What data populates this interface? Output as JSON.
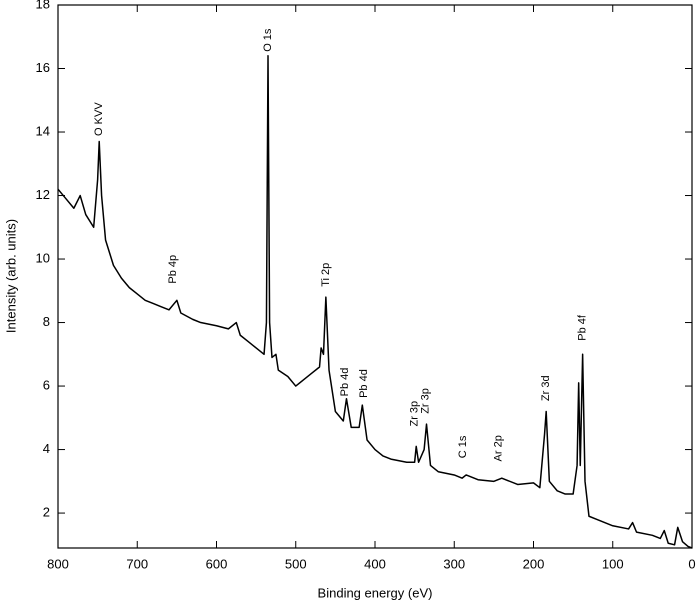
{
  "chart_data": {
    "type": "line",
    "xlabel": "Binding energy (eV)",
    "ylabel": "Intensity (arb. units)",
    "xlim": [
      800,
      0
    ],
    "ylim": [
      0.9,
      18
    ],
    "xticks": [
      800,
      700,
      600,
      500,
      400,
      300,
      200,
      100,
      0
    ],
    "yticks": [
      2,
      4,
      6,
      8,
      10,
      12,
      14,
      16,
      18
    ],
    "series": [
      {
        "color": "#000000",
        "x": [
          800,
          790,
          780,
          772,
          765,
          755,
          750,
          748,
          745,
          740,
          730,
          720,
          710,
          700,
          690,
          680,
          670,
          660,
          650,
          645,
          630,
          620,
          600,
          585,
          575,
          570,
          560,
          550,
          540,
          537,
          535,
          533,
          530,
          525,
          522,
          510,
          500,
          490,
          480,
          470,
          468,
          465,
          462,
          458,
          450,
          440,
          436,
          430,
          420,
          416,
          410,
          400,
          390,
          380,
          360,
          350,
          348,
          345,
          338,
          335,
          330,
          320,
          300,
          290,
          285,
          270,
          250,
          240,
          220,
          200,
          192,
          186,
          184,
          180,
          170,
          160,
          150,
          145,
          143,
          141,
          138,
          135,
          130,
          120,
          100,
          80,
          75,
          70,
          50,
          40,
          35,
          30,
          22,
          18,
          12,
          5,
          0
        ],
        "values": [
          12.2,
          11.9,
          11.6,
          12.0,
          11.4,
          11.0,
          12.5,
          13.7,
          12.0,
          10.6,
          9.8,
          9.4,
          9.1,
          8.9,
          8.7,
          8.6,
          8.5,
          8.4,
          8.7,
          8.3,
          8.1,
          8.0,
          7.9,
          7.8,
          8.0,
          7.6,
          7.4,
          7.2,
          7.0,
          8.0,
          16.4,
          8.0,
          6.9,
          7.0,
          6.5,
          6.3,
          6.0,
          6.2,
          6.4,
          6.6,
          7.2,
          7.0,
          8.8,
          6.5,
          5.2,
          4.9,
          5.6,
          4.7,
          4.7,
          5.4,
          4.3,
          4.0,
          3.8,
          3.7,
          3.6,
          3.6,
          4.1,
          3.6,
          4.0,
          4.8,
          3.5,
          3.3,
          3.2,
          3.1,
          3.2,
          3.05,
          3.0,
          3.1,
          2.9,
          2.95,
          2.8,
          4.5,
          5.2,
          3.0,
          2.7,
          2.6,
          2.6,
          3.5,
          6.1,
          3.5,
          7.0,
          3.0,
          1.9,
          1.8,
          1.6,
          1.5,
          1.7,
          1.4,
          1.3,
          1.2,
          1.45,
          1.05,
          1.0,
          1.55,
          1.1,
          0.95,
          0.9
        ]
      }
    ],
    "annotations": [
      {
        "text": "O KVV",
        "x": 748,
        "y": 13.75
      },
      {
        "text": "O 1s",
        "x": 535,
        "y": 16.4
      },
      {
        "text": "Pb 4p",
        "x": 655,
        "y": 9.1
      },
      {
        "text": "Ti 2p",
        "x": 462,
        "y": 9.0
      },
      {
        "text": "Pb 4d",
        "x": 438,
        "y": 5.55
      },
      {
        "text": "Pb 4d",
        "x": 414,
        "y": 5.5
      },
      {
        "text": "Zr 3p",
        "x": 350,
        "y": 4.6
      },
      {
        "text": "Zr 3p",
        "x": 336,
        "y": 5.0
      },
      {
        "text": "C 1s",
        "x": 289,
        "y": 3.6
      },
      {
        "text": "Ar 2p",
        "x": 244,
        "y": 3.5
      },
      {
        "text": "Zr 3d",
        "x": 184,
        "y": 5.4
      },
      {
        "text": "Pb 4f",
        "x": 138,
        "y": 7.3
      }
    ]
  }
}
